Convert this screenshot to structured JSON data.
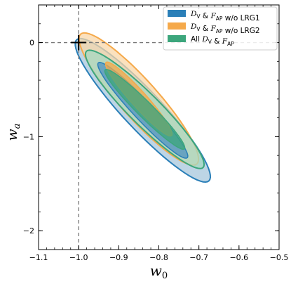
{
  "chart_data": {
    "type": "contour",
    "xlabel": "w₀",
    "ylabel": "wₐ",
    "xlim": [
      -1.1,
      -0.5
    ],
    "ylim": [
      -2.2,
      0.4
    ],
    "xticks": [
      -1.1,
      -1.0,
      -0.9,
      -0.8,
      -0.7,
      -0.6,
      -0.5
    ],
    "xtick_labels": [
      "−1.1",
      "−1.0",
      "−0.9",
      "−0.8",
      "−0.7",
      "−0.6",
      "−0.5"
    ],
    "yticks": [
      0,
      -1,
      -2
    ],
    "ytick_labels": [
      "0",
      "−1",
      "−2"
    ],
    "reference_lines": {
      "w0": -1.0,
      "wa": 0.0
    },
    "reference_point": {
      "w0": -1.0,
      "wa": 0.0
    },
    "legend_position": "top-right",
    "series": [
      {
        "name": "D_V & F_AP w/o LRG1",
        "legend_label": {
          "a": "D",
          "a_sub": "V",
          "b": " & ",
          "c": "F",
          "c_sub": "AP",
          "d": " w/o LRG1"
        },
        "color": "#2a7fb8",
        "fill_outer": "#a7c7dc",
        "fill_inner": "#4f92c0",
        "center": [
          -0.84,
          -0.72
        ],
        "contour_68": {
          "u": 0.74,
          "v": 0.055
        },
        "contour_95": {
          "u": 1.1,
          "v": 0.11
        },
        "axis_dir": [
          0.205,
          -1.0
        ],
        "end_95_high": [
          -1.01,
          0.0
        ],
        "end_95_low": [
          -0.68,
          -1.5
        ]
      },
      {
        "name": "D_V & F_AP w/o LRG2",
        "legend_label": {
          "a": "D",
          "a_sub": "V",
          "b": " & ",
          "c": "F",
          "c_sub": "AP",
          "d": " w/o LRG2"
        },
        "color": "#f5a94a",
        "fill_outer": "#f9d7a8",
        "fill_inner": "#f5a94a",
        "center": [
          -0.85,
          -0.6
        ],
        "contour_68": {
          "u": 0.62,
          "v": 0.05
        },
        "contour_95": {
          "u": 1.1,
          "v": 0.12
        },
        "axis_dir": [
          0.205,
          -1.0
        ],
        "end_95_high": [
          -1.01,
          0.03
        ],
        "end_95_low": [
          -0.72,
          -1.35
        ]
      },
      {
        "name": "All D_V & F_AP",
        "legend_label": {
          "a": "All ",
          "b": "D",
          "b_sub": "V",
          "c": " & ",
          "d": "F",
          "d_sub": "AP"
        },
        "color": "#3ca67c",
        "fill_outer": "#a6d8c2",
        "fill_inner": "#3ca67c",
        "center": [
          -0.835,
          -0.71
        ],
        "contour_68": {
          "u": 0.68,
          "v": 0.048
        },
        "contour_95": {
          "u": 1.0,
          "v": 0.095
        },
        "axis_dir": [
          0.205,
          -1.0
        ],
        "end_95_high": [
          -1.0,
          -0.06
        ],
        "end_95_low": [
          -0.68,
          -1.42
        ]
      }
    ]
  }
}
